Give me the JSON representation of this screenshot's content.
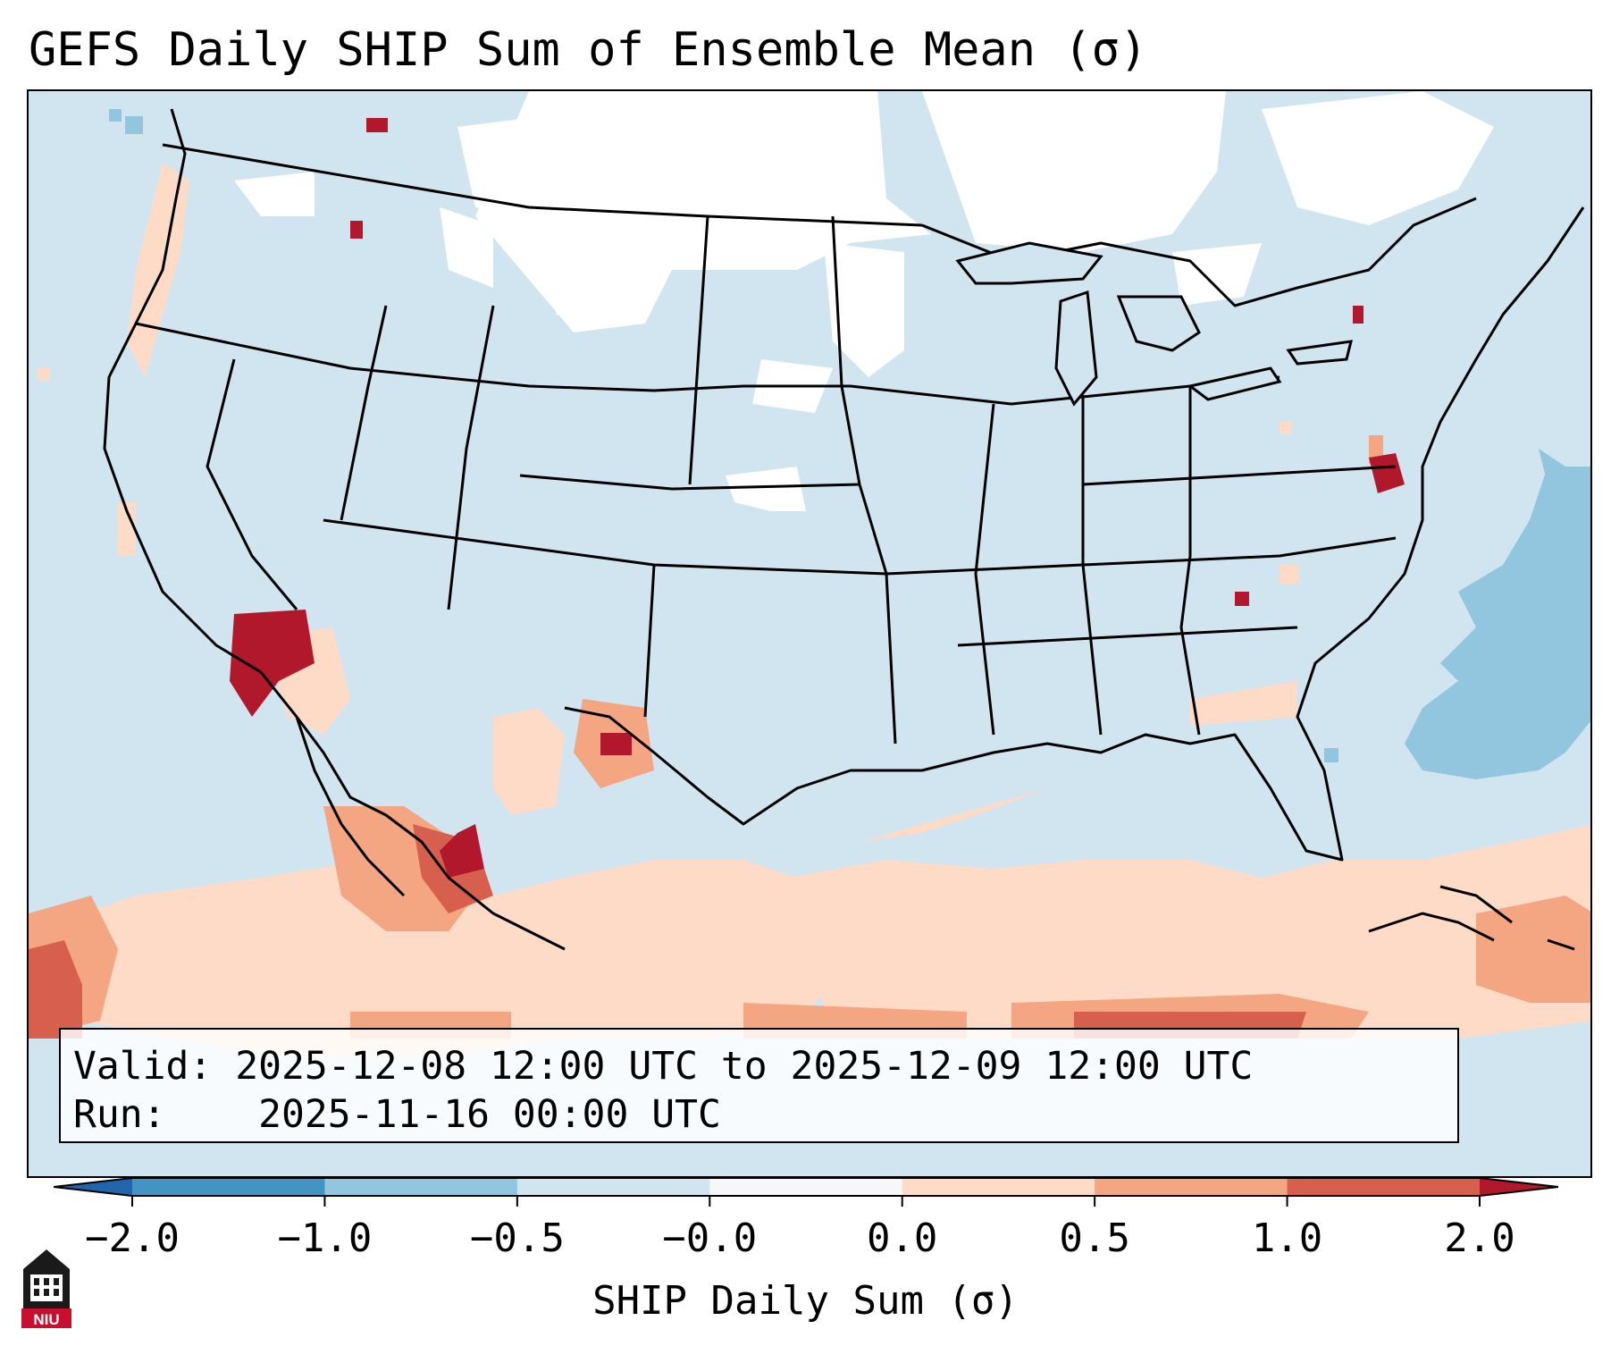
{
  "title": "GEFS Daily SHIP Sum of Ensemble Mean (σ)",
  "info": {
    "valid_label": "Valid:",
    "valid_value": "2025-12-08 12:00 UTC to 2025-12-09 12:00 UTC",
    "run_label": "Run:",
    "run_value": "2025-11-16 00:00 UTC"
  },
  "colorbar": {
    "label": "SHIP Daily Sum (σ)",
    "ticks": [
      "−2.0",
      "−1.0",
      "−0.5",
      "−0.0",
      "0.0",
      "0.5",
      "1.0",
      "2.0"
    ],
    "colors": [
      "#4393c3",
      "#92c5de",
      "#d1e5f0",
      "#f7f7f7",
      "#fddbc7",
      "#f4a582",
      "#d6604d"
    ],
    "extend_low_color": "#2166ac",
    "extend_high_color": "#b2182b"
  },
  "logo": {
    "text": "NIU",
    "icon": "niu-building-logo"
  }
}
